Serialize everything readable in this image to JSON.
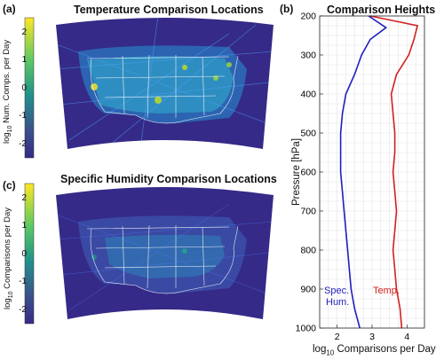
{
  "panel_a": {
    "label": "(a)",
    "title": "Temperature Comparison Locations",
    "colorbar": {
      "label_prefix": "log",
      "label_sub": "10",
      "label_suffix": " Num. Comps. per Day",
      "ticks": [
        "2",
        "1",
        "0",
        "-1",
        "-2"
      ],
      "colors": [
        "#fde725",
        "#5ec962",
        "#21918c",
        "#3b528b",
        "#352a87"
      ]
    }
  },
  "panel_c": {
    "label": "(c)",
    "title": "Specific Humidity Comparison Locations",
    "colorbar": {
      "label_prefix": "log",
      "label_sub": "10",
      "label_suffix": " Comparisons per Day",
      "ticks": [
        "2",
        "1",
        "0",
        "-1",
        "-2"
      ],
      "colors": [
        "#fde725",
        "#5ec962",
        "#21918c",
        "#3b528b",
        "#352a87"
      ]
    }
  },
  "chart_data": [
    {
      "type": "heatmap",
      "title": "Temperature Comparison Locations",
      "colorbar_range": [
        -2.5,
        2.5
      ]
    },
    {
      "type": "heatmap",
      "title": "Specific Humidity Comparison Locations",
      "colorbar_range": [
        -2.5,
        2.5
      ]
    },
    {
      "type": "line",
      "panel_label": "(b)",
      "title": "Comparison Heights",
      "xlabel_prefix": "log",
      "xlabel_sub": "10",
      "xlabel_suffix": " Comparisons per Day",
      "ylabel": "Pressure [hPa]",
      "xlim": [
        1.5,
        4.5
      ],
      "ylim": [
        1000,
        200
      ],
      "y_reversed": true,
      "xticks": [
        2,
        3,
        4
      ],
      "yticks": [
        200,
        300,
        400,
        500,
        600,
        700,
        800,
        900,
        1000
      ],
      "grid": true,
      "series": [
        {
          "name_line1": "Spec.",
          "name_line2": "Hum.",
          "color": "#1f1fbf",
          "points": [
            [
              2.9,
              200
            ],
            [
              3.4,
              230
            ],
            [
              2.95,
              260
            ],
            [
              2.7,
              300
            ],
            [
              2.5,
              350
            ],
            [
              2.25,
              400
            ],
            [
              2.15,
              450
            ],
            [
              2.1,
              500
            ],
            [
              2.1,
              550
            ],
            [
              2.1,
              600
            ],
            [
              2.15,
              650
            ],
            [
              2.2,
              700
            ],
            [
              2.25,
              750
            ],
            [
              2.3,
              800
            ],
            [
              2.35,
              850
            ],
            [
              2.4,
              900
            ],
            [
              2.5,
              950
            ],
            [
              2.65,
              1000
            ]
          ]
        },
        {
          "name": "Temp.",
          "color": "#d42020",
          "points": [
            [
              2.95,
              200
            ],
            [
              4.3,
              225
            ],
            [
              4.2,
              260
            ],
            [
              4.05,
              300
            ],
            [
              3.7,
              350
            ],
            [
              3.55,
              400
            ],
            [
              3.6,
              450
            ],
            [
              3.65,
              500
            ],
            [
              3.65,
              550
            ],
            [
              3.6,
              600
            ],
            [
              3.65,
              650
            ],
            [
              3.7,
              700
            ],
            [
              3.65,
              750
            ],
            [
              3.6,
              800
            ],
            [
              3.65,
              850
            ],
            [
              3.7,
              900
            ],
            [
              3.8,
              950
            ],
            [
              3.85,
              1000
            ]
          ]
        }
      ]
    }
  ]
}
